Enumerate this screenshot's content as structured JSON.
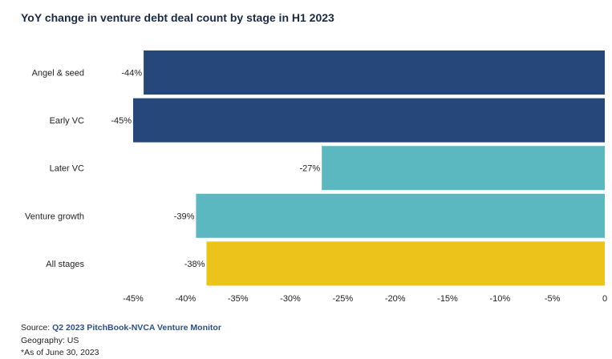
{
  "chart_data": {
    "type": "bar",
    "orientation": "horizontal",
    "title": "YoY change in venture debt deal count by stage in H1 2023",
    "categories": [
      "Angel & seed",
      "Early VC",
      "Later VC",
      "Venture growth",
      "All stages"
    ],
    "values": [
      -44,
      -45,
      -27,
      -39,
      -38
    ],
    "data_labels": [
      "-44%",
      "-45%",
      "-27%",
      "-39%",
      "-38%"
    ],
    "bar_colors": [
      "#26477a",
      "#26477a",
      "#5bb7c0",
      "#5bb7c0",
      "#ebc31a"
    ],
    "xlim": [
      -45,
      0
    ],
    "x_ticks": [
      -45,
      -40,
      -35,
      -30,
      -25,
      -20,
      -15,
      -10,
      -5,
      0
    ],
    "x_tick_labels": [
      "-45%",
      "-40%",
      "-35%",
      "-30%",
      "-25%",
      "-20%",
      "-15%",
      "-10%",
      "-5%",
      "0"
    ],
    "grid": false,
    "legend": "none"
  },
  "footer": {
    "source_prefix": "Source: ",
    "source_link": "Q2 2023 PitchBook-NVCA Venture Monitor",
    "geography": "Geography: US",
    "as_of": "*As of June 30, 2023"
  }
}
